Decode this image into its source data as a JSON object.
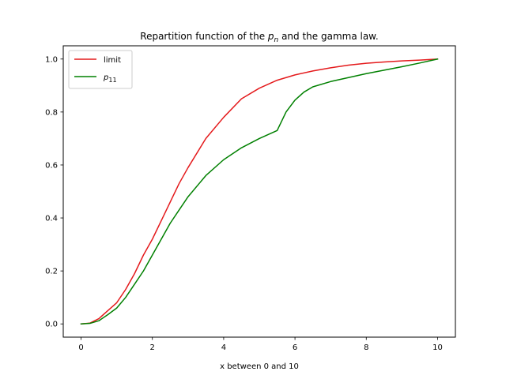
{
  "chart_data": {
    "type": "line",
    "title_parts": {
      "prefix": "Repartition function of the ",
      "var": "p",
      "var_sub": "n",
      "suffix": " and the gamma law."
    },
    "xlabel": "x between 0 and 10",
    "ylabel": "",
    "xlim": [
      -0.5,
      10.5
    ],
    "ylim": [
      -0.05,
      1.05
    ],
    "x_ticks": [
      0,
      2,
      4,
      6,
      8,
      10
    ],
    "x_tick_labels": [
      "0",
      "2",
      "4",
      "6",
      "8",
      "10"
    ],
    "y_ticks": [
      0.0,
      0.2,
      0.4,
      0.6,
      0.8,
      1.0
    ],
    "y_tick_labels": [
      "0.0",
      "0.2",
      "0.4",
      "0.6",
      "0.8",
      "1.0"
    ],
    "grid": false,
    "legend_position": "top-left",
    "series": [
      {
        "name": "limit",
        "legend_label": {
          "text": "limit"
        },
        "color": "#e41a1c",
        "x": [
          0,
          0.25,
          0.5,
          0.75,
          1,
          1.25,
          1.5,
          1.75,
          2,
          2.25,
          2.5,
          2.75,
          3,
          3.5,
          4,
          4.5,
          5,
          5.5,
          6,
          6.5,
          7,
          7.5,
          8,
          8.5,
          9,
          9.5,
          10
        ],
        "y": [
          0,
          0.003,
          0.02,
          0.05,
          0.08,
          0.13,
          0.19,
          0.26,
          0.32,
          0.39,
          0.46,
          0.53,
          0.59,
          0.7,
          0.78,
          0.85,
          0.89,
          0.92,
          0.94,
          0.955,
          0.967,
          0.977,
          0.984,
          0.989,
          0.993,
          0.996,
          1.0
        ]
      },
      {
        "name": "p11",
        "legend_label": {
          "var": "p",
          "sub": "11"
        },
        "color": "#008000",
        "x": [
          0,
          0.25,
          0.5,
          0.75,
          1,
          1.25,
          1.5,
          1.75,
          2,
          2.25,
          2.5,
          2.75,
          3,
          3.5,
          4,
          4.5,
          5,
          5.5,
          5.75,
          6,
          6.25,
          6.5,
          7,
          7.5,
          8,
          8.5,
          9,
          9.5,
          10
        ],
        "y": [
          0,
          0.002,
          0.012,
          0.035,
          0.06,
          0.1,
          0.15,
          0.2,
          0.26,
          0.32,
          0.38,
          0.43,
          0.48,
          0.56,
          0.62,
          0.665,
          0.7,
          0.73,
          0.8,
          0.845,
          0.875,
          0.895,
          0.915,
          0.93,
          0.945,
          0.958,
          0.971,
          0.985,
          1.0
        ]
      }
    ]
  }
}
